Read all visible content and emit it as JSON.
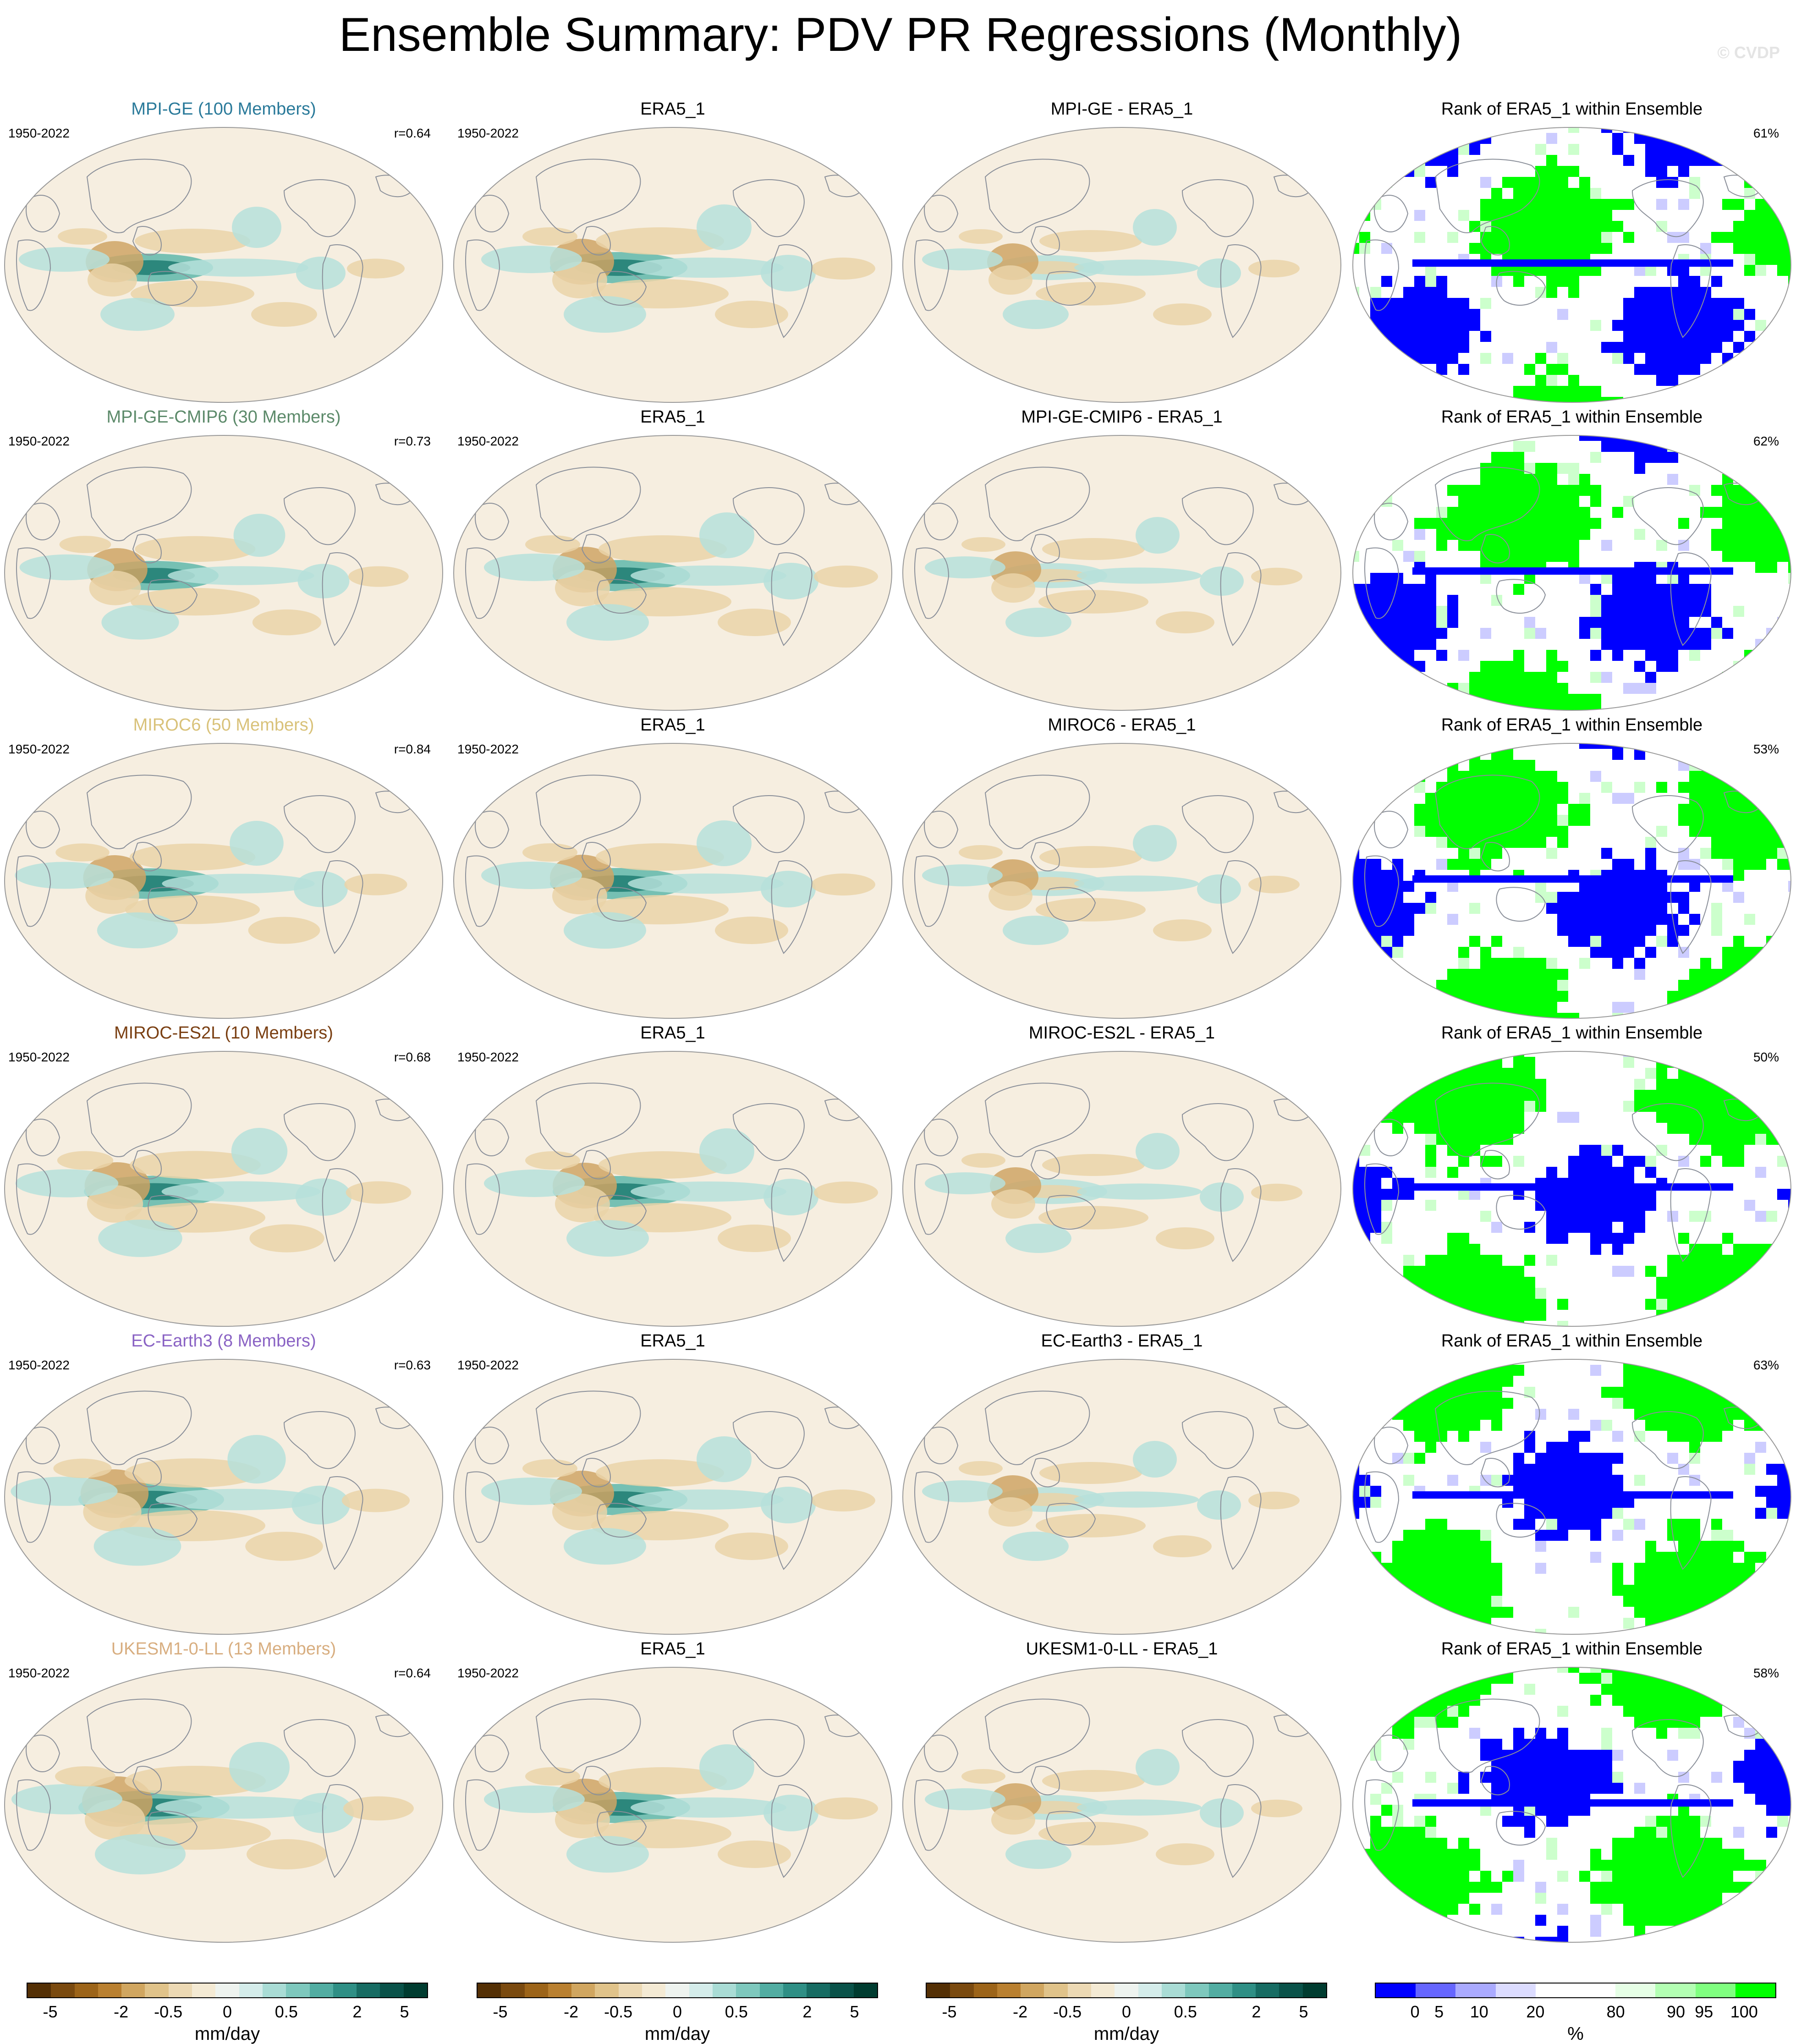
{
  "page": {
    "title": "Ensemble Summary: PDV PR Regressions (Monthly)",
    "copyright": "© CVDP"
  },
  "rows": [
    {
      "model_title": "MPI-GE (100 Members)",
      "model_color": "#2a7a9a",
      "years": "1950-2022",
      "r": "r=0.64",
      "obs_title": "ERA5_1",
      "obs_years": "1950-2022",
      "diff_title": "MPI-GE - ERA5_1",
      "rank_title": "Rank of ERA5_1 within Ensemble",
      "rank_pct": "61%"
    },
    {
      "model_title": "MPI-GE-CMIP6 (30 Members)",
      "model_color": "#5c8a6a",
      "years": "1950-2022",
      "r": "r=0.73",
      "obs_title": "ERA5_1",
      "obs_years": "1950-2022",
      "diff_title": "MPI-GE-CMIP6 - ERA5_1",
      "rank_title": "Rank of ERA5_1 within Ensemble",
      "rank_pct": "62%"
    },
    {
      "model_title": "MIROC6 (50 Members)",
      "model_color": "#d9c27a",
      "years": "1950-2022",
      "r": "r=0.84",
      "obs_title": "ERA5_1",
      "obs_years": "1950-2022",
      "diff_title": "MIROC6 - ERA5_1",
      "rank_title": "Rank of ERA5_1 within Ensemble",
      "rank_pct": "53%"
    },
    {
      "model_title": "MIROC-ES2L (10 Members)",
      "model_color": "#7a3f12",
      "years": "1950-2022",
      "r": "r=0.68",
      "obs_title": "ERA5_1",
      "obs_years": "1950-2022",
      "diff_title": "MIROC-ES2L - ERA5_1",
      "rank_title": "Rank of ERA5_1 within Ensemble",
      "rank_pct": "50%"
    },
    {
      "model_title": "EC-Earth3 (8 Members)",
      "model_color": "#8a63c4",
      "years": "1950-2022",
      "r": "r=0.63",
      "obs_title": "ERA5_1",
      "obs_years": "1950-2022",
      "diff_title": "EC-Earth3 - ERA5_1",
      "rank_title": "Rank of ERA5_1 within Ensemble",
      "rank_pct": "63%"
    },
    {
      "model_title": "UKESM1-0-LL (13 Members)",
      "model_color": "#d8ae80",
      "years": "1950-2022",
      "r": "r=0.64",
      "obs_title": "ERA5_1",
      "obs_years": "1950-2022",
      "diff_title": "UKESM1-0-LL - ERA5_1",
      "rank_title": "Rank of ERA5_1 within Ensemble",
      "rank_pct": "58%"
    }
  ],
  "colorbars": {
    "pr": {
      "ticks": [
        "-5",
        "-2",
        "-0.5",
        "0",
        "0.5",
        "2",
        "5"
      ],
      "unit": "mm/day",
      "colors": [
        "#543005",
        "#7a4a0f",
        "#9c6419",
        "#b98030",
        "#d0a660",
        "#e0c38a",
        "#ecd9b4",
        "#f4ead4",
        "#eef3ef",
        "#d4ecea",
        "#a9dcd5",
        "#7ec8bd",
        "#52ada2",
        "#2f8f85",
        "#176c63",
        "#0a5249",
        "#003c30"
      ]
    },
    "rank": {
      "ticks": [
        "0",
        "5",
        "10",
        "20",
        "80",
        "90",
        "95",
        "100"
      ],
      "unit": "%",
      "colors": [
        "#0000ff",
        "#6666ff",
        "#aaaaff",
        "#dcdcff",
        "#ffffff",
        "#ffffff",
        "#e6ffe6",
        "#b3ffb3",
        "#80ff80",
        "#00ff00"
      ]
    }
  },
  "anomaly_colors": {
    "brown_strong": "#a3702d",
    "brown": "#cfa565",
    "brown_light": "#ead4a8",
    "teal_strong": "#207d72",
    "teal": "#5fb7aa",
    "teal_light": "#b6e1da",
    "neutral": "#f6eee0",
    "rank_low": "#0000ff",
    "rank_high": "#00ff00"
  }
}
